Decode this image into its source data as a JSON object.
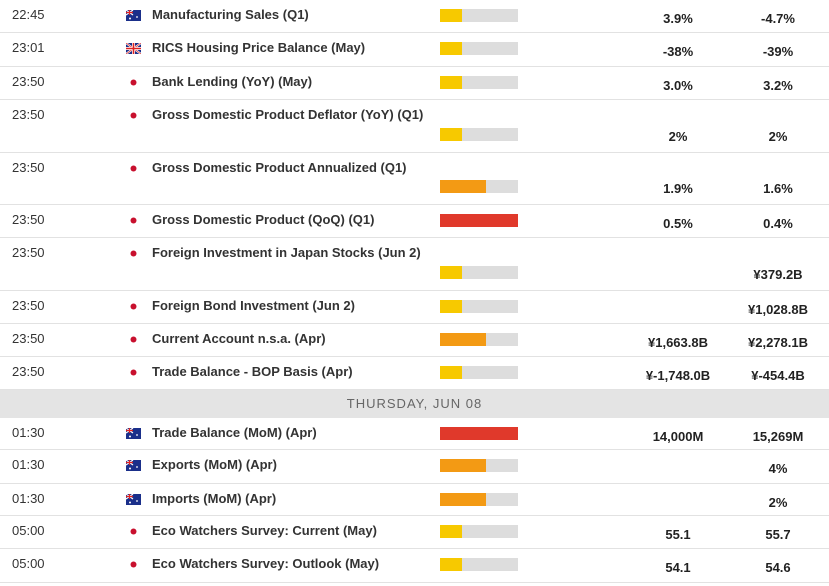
{
  "rows": [
    {
      "time": "22:45",
      "event": "Manufacturing Sales (Q1)",
      "actual": "3.9%",
      "forecast": "-4.7%"
    },
    {
      "time": "23:01",
      "event": "RICS Housing Price Balance (May)",
      "actual": "-38%",
      "forecast": "-39%"
    },
    {
      "time": "23:50",
      "event": "Bank Lending (YoY) (May)",
      "actual": "3.0%",
      "forecast": "3.2%"
    },
    {
      "time": "23:50",
      "event": "Gross Domestic Product Deflator (YoY) (Q1)",
      "actual": "2%",
      "forecast": "2%"
    },
    {
      "time": "23:50",
      "event": "Gross Domestic Product Annualized (Q1)",
      "actual": "1.9%",
      "forecast": "1.6%"
    },
    {
      "time": "23:50",
      "event": "Gross Domestic Product (QoQ) (Q1)",
      "actual": "0.5%",
      "forecast": "0.4%"
    },
    {
      "time": "23:50",
      "event": "Foreign Investment in Japan Stocks (Jun 2)",
      "forecast": "¥379.2B"
    },
    {
      "time": "23:50",
      "event": "Foreign Bond Investment (Jun 2)",
      "forecast": "¥1,028.8B"
    },
    {
      "time": "23:50",
      "event": "Current Account n.s.a. (Apr)",
      "actual": "¥1,663.8B",
      "forecast": "¥2,278.1B"
    },
    {
      "time": "23:50",
      "event": "Trade Balance - BOP Basis (Apr)",
      "actual": "¥-1,748.0B",
      "forecast": "¥-454.4B"
    },
    {
      "time": "01:30",
      "event": "Trade Balance (MoM) (Apr)",
      "actual": "14,000M",
      "forecast": "15,269M"
    },
    {
      "time": "01:30",
      "event": "Exports (MoM) (Apr)",
      "forecast": "4%"
    },
    {
      "time": "01:30",
      "event": "Imports (MoM) (Apr)",
      "forecast": "2%"
    },
    {
      "time": "05:00",
      "event": "Eco Watchers Survey: Current (May)",
      "actual": "55.1",
      "forecast": "55.7"
    },
    {
      "time": "05:00",
      "event": "Eco Watchers Survey: Outlook (May)",
      "actual": "54.1",
      "forecast": "54.6"
    }
  ],
  "separator": "THURSDAY, JUN 08"
}
